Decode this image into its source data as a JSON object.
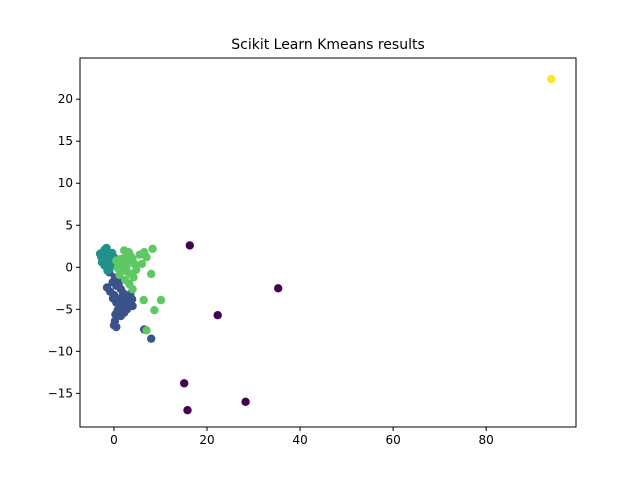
{
  "chart_data": {
    "type": "scatter",
    "title": "Scikit Learn Kmeans results",
    "xlabel": "",
    "ylabel": "",
    "xlim": [
      -7.3,
      99.3
    ],
    "ylim": [
      -19,
      24.9
    ],
    "xticks": [
      0,
      20,
      40,
      60,
      80
    ],
    "yticks": [
      -15,
      -10,
      -5,
      0,
      5,
      10,
      15,
      20
    ],
    "grid": false,
    "legend": "none",
    "cluster_colors": [
      "#440154",
      "#3b528b",
      "#21918c",
      "#5ec962",
      "#fde725"
    ],
    "clusters": [
      {
        "color": "#440154",
        "points": [
          [
            16.3,
            2.6
          ],
          [
            35.3,
            -2.5
          ],
          [
            22.3,
            -5.7
          ],
          [
            15.1,
            -13.8
          ],
          [
            28.3,
            -16.0
          ],
          [
            15.8,
            -17.0
          ]
        ]
      },
      {
        "color": "#3b528b",
        "points": [
          [
            -0.5,
            0.2
          ],
          [
            -1.0,
            -0.6
          ],
          [
            0.2,
            -1.2
          ],
          [
            -0.3,
            -1.8
          ],
          [
            0.5,
            -2.2
          ],
          [
            1.0,
            -1.5
          ],
          [
            -0.8,
            -2.9
          ],
          [
            1.5,
            -2.6
          ],
          [
            0.0,
            -3.3
          ],
          [
            2.0,
            -3.1
          ],
          [
            1.2,
            -3.7
          ],
          [
            0.5,
            -4.2
          ],
          [
            2.5,
            -4.0
          ],
          [
            3.0,
            -3.5
          ],
          [
            1.8,
            -4.6
          ],
          [
            0.8,
            -5.1
          ],
          [
            2.8,
            -5.0
          ],
          [
            3.4,
            -4.4
          ],
          [
            0.3,
            -5.6
          ],
          [
            1.5,
            -5.8
          ],
          [
            3.9,
            -3.8
          ],
          [
            0.2,
            -6.4
          ],
          [
            0.0,
            -6.9
          ],
          [
            0.5,
            -7.1
          ],
          [
            2.2,
            -5.4
          ],
          [
            3.5,
            -3.2
          ],
          [
            4.0,
            -4.6
          ],
          [
            1.0,
            -2.0
          ],
          [
            -1.5,
            -2.4
          ],
          [
            -0.2,
            -3.7
          ],
          [
            6.5,
            -7.4
          ],
          [
            8.0,
            -8.5
          ]
        ]
      },
      {
        "color": "#21918c",
        "points": [
          [
            -3.0,
            1.6
          ],
          [
            -2.7,
            1.2
          ],
          [
            -2.4,
            1.8
          ],
          [
            -2.0,
            2.1
          ],
          [
            -1.6,
            2.3
          ],
          [
            -1.9,
            1.5
          ],
          [
            -2.2,
            0.9
          ],
          [
            -1.5,
            1.3
          ],
          [
            -1.2,
            0.9
          ],
          [
            -0.8,
            1.4
          ],
          [
            -0.4,
            1.7
          ],
          [
            -1.8,
            0.5
          ],
          [
            -1.3,
            0.3
          ],
          [
            -0.9,
            0.6
          ],
          [
            -0.5,
            1.0
          ],
          [
            -2.6,
            0.6
          ],
          [
            -1.0,
            -0.2
          ],
          [
            -0.6,
            0.3
          ],
          [
            0.0,
            1.2
          ],
          [
            -1.4,
            -0.4
          ],
          [
            -2.0,
            0.2
          ],
          [
            -0.2,
            0.5
          ]
        ]
      },
      {
        "color": "#5ec962",
        "points": [
          [
            0.5,
            0.8
          ],
          [
            1.0,
            0.3
          ],
          [
            1.5,
            1.0
          ],
          [
            2.0,
            0.5
          ],
          [
            2.5,
            1.2
          ],
          [
            3.0,
            0.8
          ],
          [
            3.5,
            1.4
          ],
          [
            4.0,
            1.0
          ],
          [
            2.2,
            2.0
          ],
          [
            3.2,
            1.8
          ],
          [
            4.4,
            0.4
          ],
          [
            1.8,
            -0.3
          ],
          [
            2.8,
            -0.5
          ],
          [
            3.6,
            -0.8
          ],
          [
            4.2,
            -1.2
          ],
          [
            2.4,
            -1.5
          ],
          [
            3.3,
            -2.0
          ],
          [
            4.0,
            -2.6
          ],
          [
            1.2,
            -0.9
          ],
          [
            6.5,
            1.8
          ],
          [
            7.0,
            1.2
          ],
          [
            6.0,
            0.4
          ],
          [
            8.3,
            2.2
          ],
          [
            5.5,
            1.5
          ],
          [
            8.0,
            -0.8
          ],
          [
            6.4,
            -3.9
          ],
          [
            10.1,
            -3.9
          ],
          [
            8.7,
            -5.1
          ],
          [
            7.0,
            -7.5
          ],
          [
            0.8,
            -0.1
          ],
          [
            2.7,
            0.1
          ],
          [
            4.8,
            -0.3
          ]
        ]
      },
      {
        "color": "#fde725",
        "points": [
          [
            94.0,
            22.4
          ]
        ]
      }
    ]
  }
}
